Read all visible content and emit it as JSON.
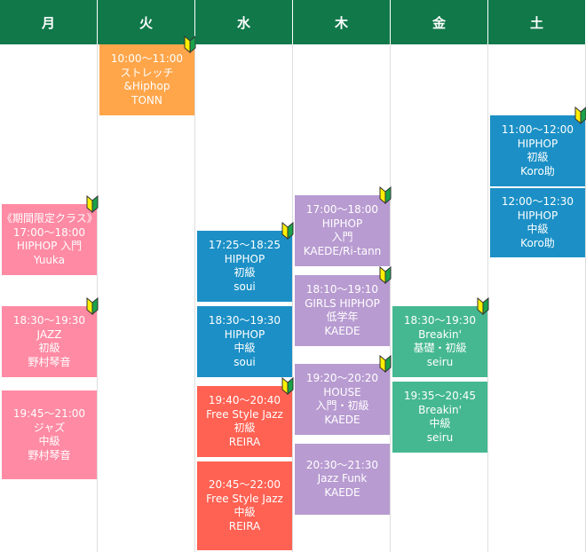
{
  "days": [
    "月",
    "火",
    "水",
    "木",
    "金",
    "土"
  ],
  "colors": {
    "header": "#11784a",
    "pink": "#ff8aa3",
    "orange": "#ffa64b",
    "blue": "#1c90c6",
    "red": "#ff6152",
    "purple": "#b89bd1",
    "green": "#45b891"
  },
  "classes": {
    "mon": [
      {
        "lines": [
          "《期間限定クラス》",
          "17:00〜18:00",
          "HIPHOP 入門",
          "Yuuka"
        ],
        "beginner": true
      },
      {
        "lines": [
          "18:30〜19:30",
          "JAZZ",
          "初級",
          "野村琴音"
        ],
        "beginner": true
      },
      {
        "lines": [
          "19:45〜21:00",
          "ジャズ",
          "中級",
          "野村琴音"
        ],
        "beginner": false
      }
    ],
    "tue": [
      {
        "lines": [
          "10:00〜11:00",
          "ストレッチ",
          "&Hiphop",
          "TONN"
        ],
        "beginner": true
      }
    ],
    "wed": [
      {
        "lines": [
          "17:25〜18:25",
          "HIPHOP",
          "初級",
          "soui"
        ],
        "beginner": true
      },
      {
        "lines": [
          "18:30〜19:30",
          "HIPHOP",
          "中級",
          "soui"
        ],
        "beginner": false
      },
      {
        "lines": [
          "19:40〜20:40",
          "Free Style Jazz",
          "初級",
          "REIRA"
        ],
        "beginner": true
      },
      {
        "lines": [
          "20:45〜22:00",
          "Free Style Jazz",
          "中級",
          "REIRA"
        ],
        "beginner": false
      }
    ],
    "thu": [
      {
        "lines": [
          "17:00〜18:00",
          "HIPHOP",
          "入門",
          "KAEDE/Ri-tann"
        ],
        "beginner": true
      },
      {
        "lines": [
          "18:10〜19:10",
          "GIRLS HIPHOP",
          "低学年",
          "KAEDE"
        ],
        "beginner": true
      },
      {
        "lines": [
          "19:20〜20:20",
          "HOUSE",
          "入門・初級",
          "KAEDE"
        ],
        "beginner": true
      },
      {
        "lines": [
          "20:30〜21:30",
          "Jazz Funk",
          "KAEDE"
        ],
        "beginner": false
      }
    ],
    "fri": [
      {
        "lines": [
          "18:30〜19:30",
          "Breakin'",
          "基礎・初級",
          "seiru"
        ],
        "beginner": true
      },
      {
        "lines": [
          "19:35〜20:45",
          "Breakin'",
          "中級",
          "seiru"
        ],
        "beginner": false
      }
    ],
    "sat": [
      {
        "lines": [
          "11:00〜12:00",
          "HIPHOP",
          "初級",
          "Koro助"
        ],
        "beginner": true
      },
      {
        "lines": [
          "12:00〜12:30",
          "HIPHOP",
          "中級",
          "Koro助"
        ],
        "beginner": false
      }
    ]
  }
}
